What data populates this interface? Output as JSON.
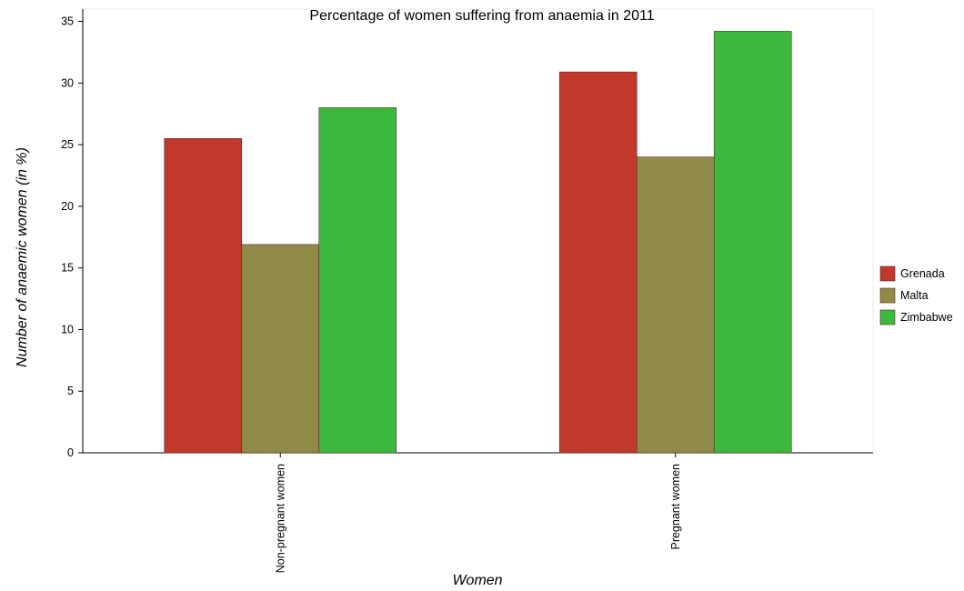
{
  "chart_data": {
    "type": "bar",
    "title": "Percentage of women suffering from anaemia in 2011",
    "xlabel": "Women",
    "ylabel": "Number of anaemic women (in %)",
    "categories": [
      "Non-pregnant women",
      "Pregnant women"
    ],
    "series": [
      {
        "name": "Grenada",
        "color": "#c0392b",
        "values": [
          25.5,
          30.9
        ]
      },
      {
        "name": "Malta",
        "color": "#8f8a48",
        "values": [
          16.9,
          24.0
        ]
      },
      {
        "name": "Zimbabwe",
        "color": "#3cb83c",
        "values": [
          28.0,
          34.2
        ]
      }
    ],
    "ylim": [
      0,
      36
    ],
    "yticks": [
      0,
      5,
      10,
      15,
      20,
      25,
      30,
      35
    ],
    "grid": false,
    "legend_position": "right"
  }
}
